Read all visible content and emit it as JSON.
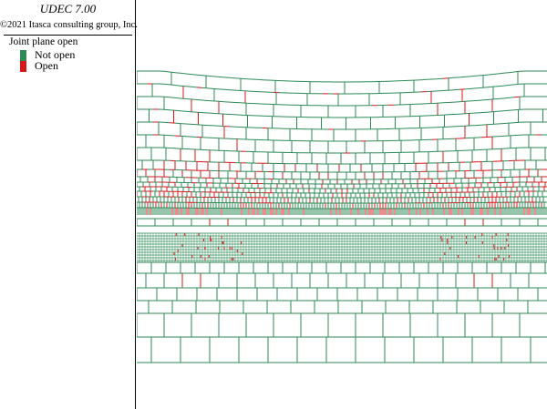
{
  "header": {
    "app_title": "UDEC 7.00",
    "copyright": "©2021 Itasca consulting group, Inc."
  },
  "legend": {
    "title": "Joint plane open",
    "items": [
      {
        "label": "Not open",
        "color": "#2e8b57"
      },
      {
        "label": "Open",
        "color": "#d7191c"
      }
    ]
  },
  "colors": {
    "joint_not_open": "#2e8b57",
    "joint_open": "#d7191c"
  }
}
